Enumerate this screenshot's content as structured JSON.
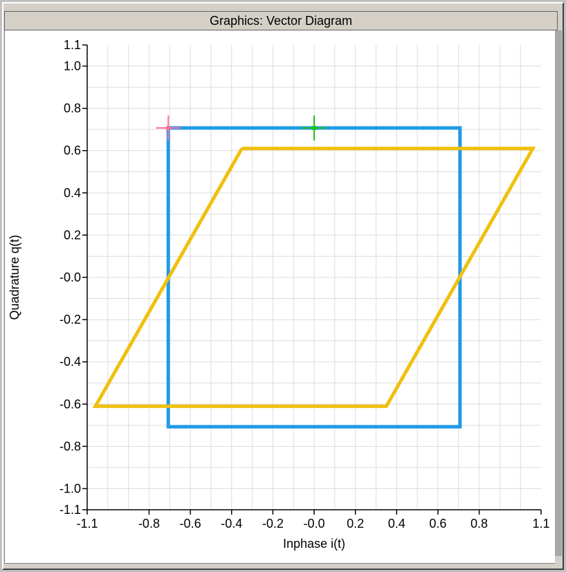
{
  "window": {
    "title": "Graphics: Vector Diagram"
  },
  "colors": {
    "background": "#ffffff",
    "grid": "#dcdcdc",
    "axis": "#000000",
    "reference_constellation": "#1e9be6",
    "impaired_constellation": "#f0c010",
    "marker_start": "#ff70a0",
    "marker_center": "#20c020"
  },
  "chart_data": {
    "type": "line",
    "title": "",
    "xlabel": "Inphase i(t)",
    "ylabel": "Quadrature q(t)",
    "xlim": [
      -1.1,
      1.1
    ],
    "ylim": [
      -1.1,
      1.1
    ],
    "grid": true,
    "legend": "none",
    "x_ticks": [
      {
        "value": -1.1,
        "label": "-1.1"
      },
      {
        "value": -0.8,
        "label": "-0.8"
      },
      {
        "value": -0.6,
        "label": "-0.6"
      },
      {
        "value": -0.4,
        "label": "-0.4"
      },
      {
        "value": -0.2,
        "label": "-0.2"
      },
      {
        "value": 0.0,
        "label": "-0.0"
      },
      {
        "value": 0.2,
        "label": "0.2"
      },
      {
        "value": 0.4,
        "label": "0.4"
      },
      {
        "value": 0.6,
        "label": "0.6"
      },
      {
        "value": 0.8,
        "label": "0.8"
      },
      {
        "value": 1.1,
        "label": "1.1"
      }
    ],
    "y_ticks": [
      {
        "value": 1.1,
        "label": "1.1"
      },
      {
        "value": 1.0,
        "label": "1.0"
      },
      {
        "value": 0.8,
        "label": "0.8"
      },
      {
        "value": 0.6,
        "label": "0.6"
      },
      {
        "value": 0.4,
        "label": "0.4"
      },
      {
        "value": 0.2,
        "label": "0.2"
      },
      {
        "value": 0.0,
        "label": "-0.0"
      },
      {
        "value": -0.2,
        "label": "-0.2"
      },
      {
        "value": -0.4,
        "label": "-0.4"
      },
      {
        "value": -0.6,
        "label": "-0.6"
      },
      {
        "value": -0.8,
        "label": "-0.8"
      },
      {
        "value": -1.0,
        "label": "-1.0"
      },
      {
        "value": -1.1,
        "label": "-1.1"
      }
    ],
    "series": [
      {
        "color": "#1e9be6",
        "points": [
          [
            -0.707,
            0.707
          ],
          [
            0.707,
            0.707
          ],
          [
            0.707,
            -0.707
          ],
          [
            -0.707,
            -0.707
          ],
          [
            -0.707,
            0.707
          ]
        ]
      },
      {
        "color": "#f0c010",
        "points": [
          [
            -0.35,
            0.61
          ],
          [
            1.06,
            0.61
          ],
          [
            0.35,
            -0.61
          ],
          [
            -1.06,
            -0.61
          ],
          [
            -0.35,
            0.61
          ]
        ]
      }
    ],
    "markers": [
      {
        "name": "start-marker",
        "x": -0.707,
        "y": 0.707,
        "color": "#ff70a0"
      },
      {
        "name": "center-marker",
        "x": 0.0,
        "y": 0.707,
        "color": "#20c020"
      }
    ]
  }
}
